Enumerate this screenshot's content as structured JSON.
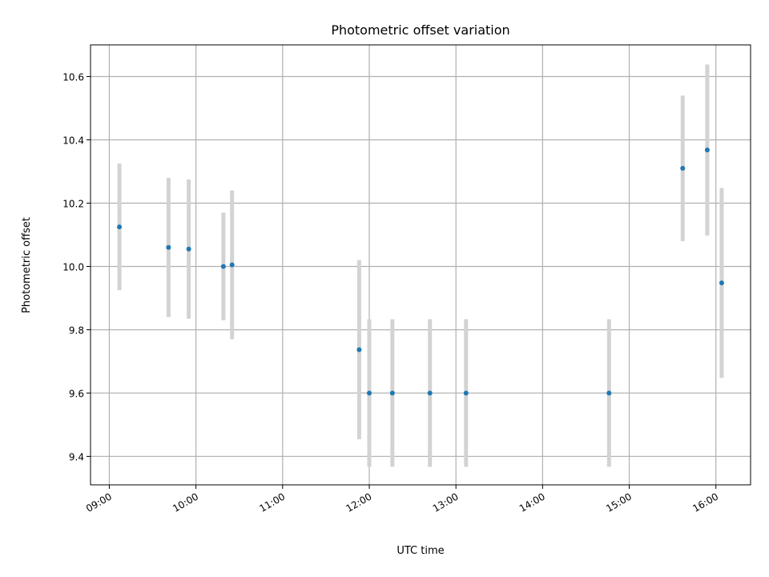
{
  "chart_data": {
    "type": "scatter",
    "title": "Photometric offset variation",
    "xlabel": "UTC time",
    "ylabel": "Photometric offset",
    "x_ticks": [
      "09:00",
      "10:00",
      "11:00",
      "12:00",
      "13:00",
      "14:00",
      "15:00",
      "16:00"
    ],
    "y_ticks": [
      "9.4",
      "9.6",
      "9.8",
      "10.0",
      "10.2",
      "10.4",
      "10.6"
    ],
    "xlim": [
      "08:47",
      "16:24"
    ],
    "ylim": [
      9.31,
      10.7
    ],
    "grid": true,
    "points": [
      {
        "x": "09:07",
        "y": 10.125,
        "err": 0.2
      },
      {
        "x": "09:41",
        "y": 10.06,
        "err": 0.22
      },
      {
        "x": "09:55",
        "y": 10.055,
        "err": 0.22
      },
      {
        "x": "10:19",
        "y": 10.0,
        "err": 0.17
      },
      {
        "x": "10:25",
        "y": 10.005,
        "err": 0.235
      },
      {
        "x": "11:53",
        "y": 9.737,
        "err": 0.283
      },
      {
        "x": "12:00",
        "y": 9.6,
        "err": 0.233
      },
      {
        "x": "12:16",
        "y": 9.6,
        "err": 0.233
      },
      {
        "x": "12:42",
        "y": 9.6,
        "err": 0.233
      },
      {
        "x": "13:07",
        "y": 9.6,
        "err": 0.233
      },
      {
        "x": "14:46",
        "y": 9.6,
        "err": 0.233
      },
      {
        "x": "15:37",
        "y": 10.31,
        "err": 0.23
      },
      {
        "x": "15:54",
        "y": 10.368,
        "err": 0.27
      },
      {
        "x": "16:04",
        "y": 9.948,
        "err": 0.3
      }
    ],
    "colors": {
      "marker": "#1f77b4",
      "errorbar": "#d3d3d3",
      "grid": "#b0b0b0",
      "axes": "#000000"
    }
  }
}
